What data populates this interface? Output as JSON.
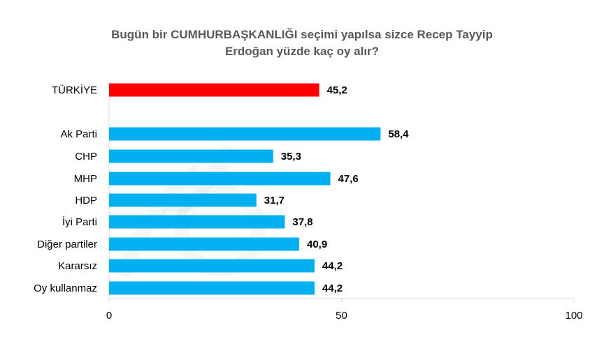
{
  "chart_data": {
    "type": "bar",
    "orientation": "horizontal",
    "title_lines": [
      "Bugün bir CUMHURBAŞKANLIĞI seçimi yapılsa sizce Recep Tayyip",
      "Erdoğan yüzde kaç oy alır?"
    ],
    "categories": [
      "TÜRKİYE",
      "Ak Parti",
      "CHP",
      "MHP",
      "HDP",
      "İyi Parti",
      "Diğer partiler",
      "Kararsız",
      "Oy kullanmaz"
    ],
    "values": [
      45.2,
      58.4,
      35.3,
      47.6,
      31.7,
      37.8,
      40.9,
      44.2,
      44.2
    ],
    "value_labels": [
      "45,2",
      "58,4",
      "35,3",
      "47,6",
      "31,7",
      "37,8",
      "40,9",
      "44,2",
      "44,2"
    ],
    "highlight_index": 0,
    "xlim": [
      0,
      100
    ],
    "x_ticks": [
      0,
      50,
      100
    ],
    "grid": false,
    "colors": {
      "highlight": "#ff0000",
      "bar": "#00b0f0",
      "axis": "#d9d9d9",
      "title": "#595959"
    }
  }
}
